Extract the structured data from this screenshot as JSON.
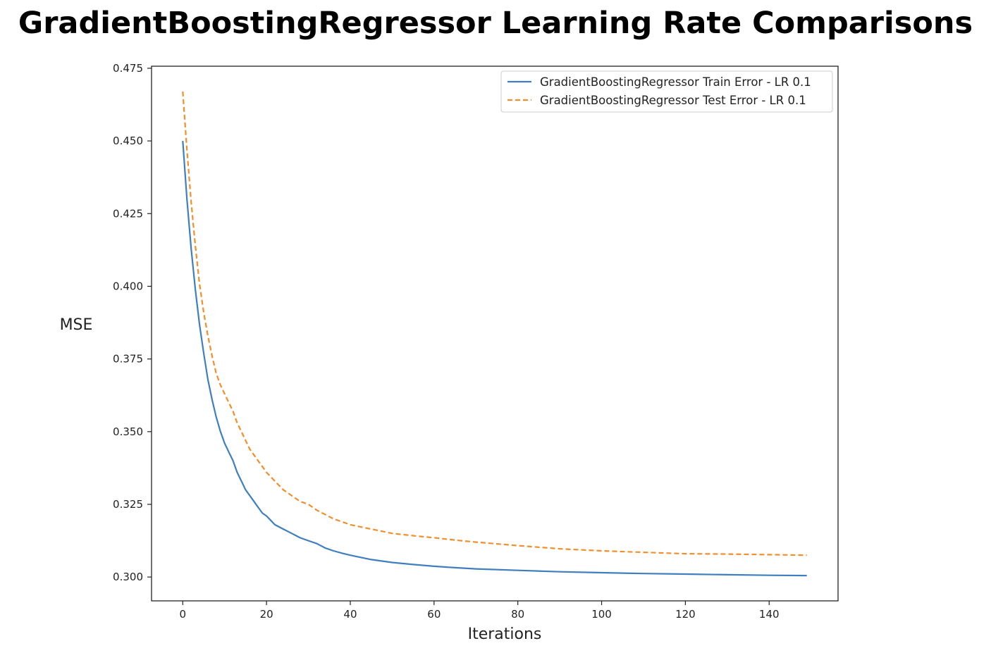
{
  "chart_data": {
    "type": "line",
    "title": "GradientBoostingRegressor Learning Rate Comparisons",
    "xlabel": "Iterations",
    "ylabel": "MSE",
    "xlim": [
      -7.45,
      156.45
    ],
    "ylim": [
      0.2918,
      0.4757
    ],
    "xticks": [
      0,
      20,
      40,
      60,
      80,
      100,
      120,
      140
    ],
    "yticks": [
      0.3,
      0.325,
      0.35,
      0.375,
      0.4,
      0.425,
      0.45,
      0.475
    ],
    "ytick_labels": [
      "0.300",
      "0.325",
      "0.350",
      "0.375",
      "0.400",
      "0.425",
      "0.450",
      "0.475"
    ],
    "grid": false,
    "legend_position": "top-right",
    "series": [
      {
        "name": "GradientBoostingRegressor Train Error - LR 0.1",
        "color": "#3f7fbe",
        "style": "solid",
        "x": [
          0,
          1,
          2,
          3,
          4,
          5,
          6,
          7,
          8,
          9,
          10,
          11,
          12,
          13,
          14,
          15,
          16,
          17,
          18,
          19,
          20,
          22,
          24,
          26,
          28,
          30,
          32,
          34,
          36,
          38,
          40,
          45,
          50,
          55,
          60,
          65,
          70,
          80,
          90,
          100,
          110,
          120,
          130,
          140,
          149
        ],
        "values": [
          0.45,
          0.43,
          0.413,
          0.399,
          0.387,
          0.377,
          0.368,
          0.361,
          0.355,
          0.35,
          0.346,
          0.343,
          0.34,
          0.336,
          0.333,
          0.33,
          0.328,
          0.326,
          0.324,
          0.322,
          0.321,
          0.318,
          0.3165,
          0.315,
          0.3135,
          0.3125,
          0.3115,
          0.31,
          0.309,
          0.3082,
          0.3075,
          0.306,
          0.305,
          0.3043,
          0.3037,
          0.3032,
          0.3028,
          0.3023,
          0.3018,
          0.3015,
          0.3012,
          0.301,
          0.3008,
          0.3006,
          0.3005
        ]
      },
      {
        "name": "GradientBoostingRegressor Test Error - LR 0.1",
        "color": "#f28e2b",
        "style": "dashed",
        "x": [
          0,
          1,
          2,
          3,
          4,
          5,
          6,
          7,
          8,
          9,
          10,
          11,
          12,
          13,
          14,
          15,
          16,
          17,
          18,
          19,
          20,
          22,
          24,
          26,
          28,
          30,
          32,
          34,
          36,
          38,
          40,
          45,
          50,
          55,
          60,
          65,
          70,
          80,
          90,
          100,
          110,
          120,
          130,
          140,
          149
        ],
        "values": [
          0.467,
          0.447,
          0.429,
          0.414,
          0.401,
          0.391,
          0.383,
          0.376,
          0.37,
          0.366,
          0.363,
          0.36,
          0.357,
          0.353,
          0.35,
          0.347,
          0.344,
          0.342,
          0.34,
          0.338,
          0.336,
          0.333,
          0.33,
          0.328,
          0.326,
          0.325,
          0.323,
          0.3215,
          0.32,
          0.319,
          0.318,
          0.3165,
          0.315,
          0.3142,
          0.3135,
          0.3127,
          0.312,
          0.3108,
          0.3097,
          0.309,
          0.3085,
          0.308,
          0.3079,
          0.3077,
          0.3075
        ]
      }
    ]
  }
}
